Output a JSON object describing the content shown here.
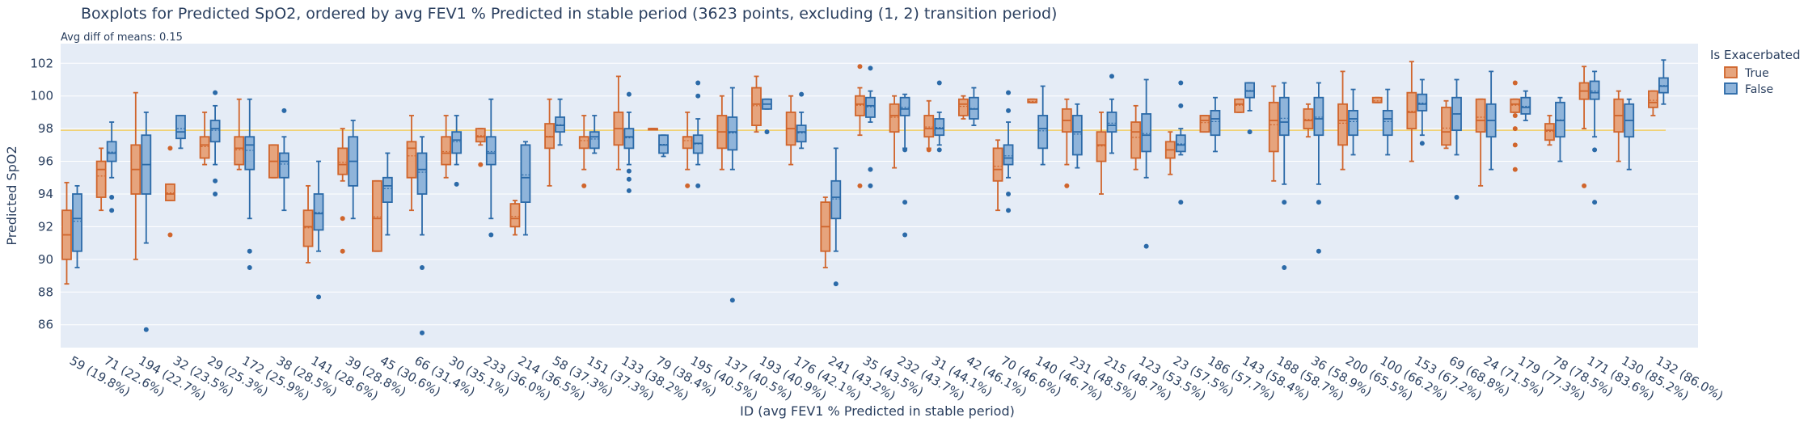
{
  "chart_data": {
    "type": "box",
    "title": "Boxplots for Predicted SpO2, ordered by avg FEV1 % Predicted in stable period (3623 points, excluding (1, 2) transition period)",
    "annotation": "Avg diff of means: 0.15",
    "xlabel": "ID (avg FEV1 % Predicted in stable period)",
    "ylabel": "Predicted SpO2",
    "ylim": [
      84.6,
      103.2
    ],
    "yticks": [
      86,
      88,
      90,
      92,
      94,
      96,
      98,
      100,
      102
    ],
    "reference_line": 97.9,
    "grid": true,
    "legend": {
      "title": "Is Exacerbated",
      "position": "top-right"
    },
    "colors": {
      "True": {
        "fill": "#e6a47d",
        "line": "#d0652c"
      },
      "False": {
        "fill": "#8fb4da",
        "line": "#2b6aa8"
      },
      "reference": "#f4c84a",
      "plot_bg": "#e5ecf6",
      "grid": "#ffffff"
    },
    "categories": [
      "59 (19.8%)",
      "71 (22.6%)",
      "194 (22.7%)",
      "32 (23.5%)",
      "29 (25.3%)",
      "172 (25.9%)",
      "38 (28.5%)",
      "141 (28.6%)",
      "39 (28.8%)",
      "45 (30.6%)",
      "66 (31.4%)",
      "30 (35.1%)",
      "233 (36.0%)",
      "214 (36.5%)",
      "58 (37.3%)",
      "151 (37.3%)",
      "133 (38.2%)",
      "79 (38.4%)",
      "195 (40.5%)",
      "137 (40.5%)",
      "193 (40.9%)",
      "176 (42.1%)",
      "241 (43.2%)",
      "35 (43.5%)",
      "232 (43.7%)",
      "31 (44.1%)",
      "42 (46.1%)",
      "70 (46.6%)",
      "140 (46.7%)",
      "231 (48.5%)",
      "215 (48.7%)",
      "123 (53.5%)",
      "23 (57.5%)",
      "186 (57.7%)",
      "143 (58.4%)",
      "188 (58.7%)",
      "36 (58.9%)",
      "200 (65.5%)",
      "100 (66.2%)",
      "153 (67.2%)",
      "69 (68.8%)",
      "24 (71.5%)",
      "179 (77.3%)",
      "78 (78.5%)",
      "171 (83.6%)",
      "130 (85.2%)",
      "132 (86.0%)"
    ],
    "series": [
      {
        "name": "True",
        "boxes": [
          [
            88.5,
            90,
            91.5,
            93,
            94.7
          ],
          [
            93,
            93.8,
            95.5,
            96,
            96.8
          ],
          [
            90,
            94,
            95.5,
            97,
            100.2
          ],
          [
            93.6,
            93.6,
            94,
            94.6,
            94.6
          ],
          [
            95.8,
            96.2,
            97,
            97.5,
            99
          ],
          [
            95.5,
            95.8,
            96.8,
            97.5,
            99.8
          ],
          [
            95,
            95,
            96,
            97,
            97
          ],
          [
            89.8,
            90.8,
            92,
            93,
            94.5
          ],
          [
            94.8,
            95.2,
            95.8,
            96.8,
            98
          ],
          [
            90.5,
            90.5,
            92.5,
            94.8,
            94.8
          ],
          [
            93,
            95,
            96.8,
            97.2,
            98.8
          ],
          [
            95,
            95.8,
            96.5,
            97.5,
            98.8
          ],
          [
            97,
            97.2,
            97.5,
            98,
            98
          ],
          [
            91.5,
            92,
            92.5,
            93.4,
            93.6
          ],
          [
            94.5,
            96.8,
            97.5,
            98.3,
            99.8
          ],
          [
            95.5,
            96.8,
            97.5,
            97.5,
            98.8
          ],
          [
            95.5,
            97,
            98,
            99,
            101.2
          ],
          [
            98,
            98,
            98,
            98,
            98
          ],
          [
            95.5,
            96.8,
            97.5,
            97.5,
            99
          ],
          [
            95.5,
            96.8,
            97.8,
            98.8,
            100
          ],
          [
            97.8,
            98.2,
            99.5,
            100.5,
            101.2
          ],
          [
            95.8,
            97,
            98,
            99,
            100
          ],
          [
            89.5,
            90.5,
            92,
            93.5,
            93.8
          ],
          [
            97.6,
            98.8,
            99.5,
            100,
            100.5
          ],
          [
            95.6,
            97.8,
            98.8,
            99.5,
            100
          ],
          [
            96.8,
            97.5,
            98,
            98.8,
            99.7
          ],
          [
            98.6,
            98.8,
            99.5,
            99.8,
            100
          ],
          [
            93,
            94.8,
            95.5,
            96.8,
            97.3
          ],
          [
            99.6,
            99.6,
            99.6,
            99.8,
            99.8
          ],
          [
            95.8,
            97.8,
            98.5,
            99.2,
            99.8
          ],
          [
            94,
            96,
            97,
            97.8,
            99
          ],
          [
            95.5,
            96.2,
            97.8,
            98.4,
            99.4
          ],
          [
            95.2,
            96.2,
            96.7,
            97.2,
            97.8
          ],
          [
            97.8,
            97.8,
            98.5,
            98.8,
            98.8
          ],
          [
            99,
            99,
            99.5,
            99.8,
            99.8
          ],
          [
            94.8,
            96.6,
            98.5,
            99.6,
            100.6
          ],
          [
            97.5,
            98,
            98.5,
            99.2,
            99.5
          ],
          [
            95.5,
            97,
            98.5,
            99.5,
            101.5
          ],
          [
            99.6,
            99.6,
            99.6,
            99.9,
            99.9
          ],
          [
            96,
            98,
            99,
            100.2,
            102.1
          ],
          [
            96.8,
            97,
            97.8,
            99.3,
            99.7
          ],
          [
            94.5,
            97.8,
            98.5,
            99.8,
            99.8
          ],
          [
            99,
            99,
            99.5,
            99.8,
            99.8
          ],
          [
            97,
            97.3,
            97.9,
            98.3,
            98.8
          ],
          [
            98,
            99.8,
            100.3,
            100.8,
            101.8
          ],
          [
            96,
            97.8,
            98.8,
            99.8,
            100.3
          ],
          [
            98.8,
            99.3,
            99.6,
            100.3,
            100.3
          ]
        ],
        "outliers": [
          [],
          [],
          [],
          [
            91.5,
            96.8
          ],
          [],
          [],
          [],
          [],
          [
            92.5,
            90.5
          ],
          [],
          [],
          [],
          [
            95.8
          ],
          [],
          [],
          [
            94.5
          ],
          [],
          [],
          [
            94.5
          ],
          [],
          [],
          [],
          [],
          [
            101.8,
            94.5
          ],
          [],
          [
            96.7
          ],
          [],
          [],
          [],
          [
            94.5
          ],
          [],
          [],
          [],
          [],
          [],
          [],
          [],
          [],
          [],
          [],
          [],
          [],
          [
            95.5,
            97,
            98,
            98.8,
            100.8
          ],
          [],
          [
            94.5
          ],
          [],
          []
        ]
      },
      {
        "name": "False",
        "boxes": [
          [
            89.5,
            90.5,
            92.5,
            94,
            94.5
          ],
          [
            95,
            96,
            96.5,
            97.2,
            98.4
          ],
          [
            91,
            94,
            95.8,
            97.6,
            99
          ],
          [
            96.8,
            97.4,
            97.8,
            98.8,
            98.8
          ],
          [
            95.8,
            97.2,
            98,
            98.5,
            99.4
          ],
          [
            92.5,
            95.5,
            97,
            97.5,
            99.8
          ],
          [
            93,
            95,
            96,
            96.5,
            97.5
          ],
          [
            90.5,
            91.8,
            92.8,
            94,
            96
          ],
          [
            92.5,
            94.5,
            96,
            97.5,
            98.5
          ],
          [
            91.5,
            93.5,
            94.5,
            95,
            96.5
          ],
          [
            91.5,
            94,
            95.5,
            96.5,
            97.5
          ],
          [
            95.8,
            96.5,
            97.3,
            97.8,
            98.8
          ],
          [
            92.5,
            95.8,
            96.5,
            97.5,
            99.8
          ],
          [
            91.5,
            93.5,
            95,
            97,
            97.2
          ],
          [
            97,
            97.8,
            98.2,
            98.7,
            99.8
          ],
          [
            96.5,
            96.8,
            97.5,
            97.8,
            98.8
          ],
          [
            95.8,
            96.8,
            97.5,
            98,
            99
          ],
          [
            96.3,
            96.5,
            97,
            97.6,
            97.6
          ],
          [
            95.8,
            96.5,
            97.1,
            97.6,
            98.6
          ],
          [
            95.5,
            96.7,
            97.8,
            98.7,
            100.5
          ],
          [
            99.2,
            99.2,
            99.5,
            99.8,
            99.8
          ],
          [
            96.8,
            97.2,
            97.8,
            98.2,
            99
          ],
          [
            90.5,
            92.5,
            93.8,
            94.8,
            96.8
          ],
          [
            98.4,
            98.7,
            99.4,
            99.9,
            100.3
          ],
          [
            96.8,
            98.8,
            99.2,
            99.9,
            100.1
          ],
          [
            97,
            97.6,
            98,
            98.6,
            99
          ],
          [
            98.2,
            98.6,
            99.2,
            99.9,
            100.5
          ],
          [
            95,
            95.8,
            96.2,
            97,
            98.4
          ],
          [
            95.8,
            96.8,
            98,
            98.8,
            100.6
          ],
          [
            95.6,
            96.4,
            97.8,
            98.8,
            99.5
          ],
          [
            96.5,
            97.8,
            98.2,
            99,
            99.8
          ],
          [
            95,
            96.6,
            97.6,
            98.9,
            101
          ],
          [
            96.4,
            96.6,
            97,
            97.6,
            98
          ],
          [
            96.6,
            97.6,
            98.6,
            99.1,
            99.9
          ],
          [
            99.1,
            99.9,
            100.3,
            100.8,
            100.8
          ],
          [
            94.6,
            97.6,
            98.4,
            99.9,
            100.8
          ],
          [
            94.6,
            97.6,
            98.6,
            99.9,
            100.8
          ],
          [
            96.4,
            97.6,
            98.6,
            99.1,
            100.4
          ],
          [
            96.4,
            97.6,
            98.6,
            99.1,
            100.4
          ],
          [
            97.6,
            99.1,
            99.5,
            100.1,
            101
          ],
          [
            96.4,
            97.9,
            98.9,
            99.9,
            101
          ],
          [
            95.5,
            97.5,
            98.5,
            99.5,
            101.5
          ],
          [
            98.5,
            98.9,
            99.3,
            99.9,
            100.3
          ],
          [
            96,
            97.5,
            98.5,
            99.6,
            99.9
          ],
          [
            97.5,
            99.8,
            100.2,
            100.9,
            101.5
          ],
          [
            95.5,
            97.5,
            98.5,
            99.5,
            99.8
          ],
          [
            99.5,
            100.2,
            100.6,
            101.1,
            102.2
          ]
        ],
        "outliers": [
          [],
          [
            93.8,
            93
          ],
          [
            85.7
          ],
          [],
          [
            100.2,
            94.8,
            94
          ],
          [
            90.5,
            89.5
          ],
          [
            99.1
          ],
          [
            87.7
          ],
          [],
          [],
          [
            89.5,
            85.5
          ],
          [
            94.6
          ],
          [
            91.5
          ],
          [],
          [],
          [],
          [
            100.1,
            95.4,
            94.9,
            94.2
          ],
          [],
          [
            100.8,
            100,
            94.5
          ],
          [
            87.5
          ],
          [
            97.8
          ],
          [
            100.1
          ],
          [
            88.5
          ],
          [
            101.7,
            95.5,
            94.5
          ],
          [
            96.7,
            93.5,
            91.5
          ],
          [
            100.8,
            96.7
          ],
          [],
          [
            100.2,
            99.1,
            94,
            93
          ],
          [],
          [],
          [
            101.2
          ],
          [
            90.8
          ],
          [
            100.8,
            99.4,
            93.5
          ],
          [],
          [
            97.8
          ],
          [
            93.5,
            89.5
          ],
          [
            93.5,
            90.5
          ],
          [],
          [],
          [
            97.1
          ],
          [
            93.8
          ],
          [],
          [],
          [],
          [
            96.7,
            93.5
          ],
          [],
          []
        ]
      }
    ]
  }
}
